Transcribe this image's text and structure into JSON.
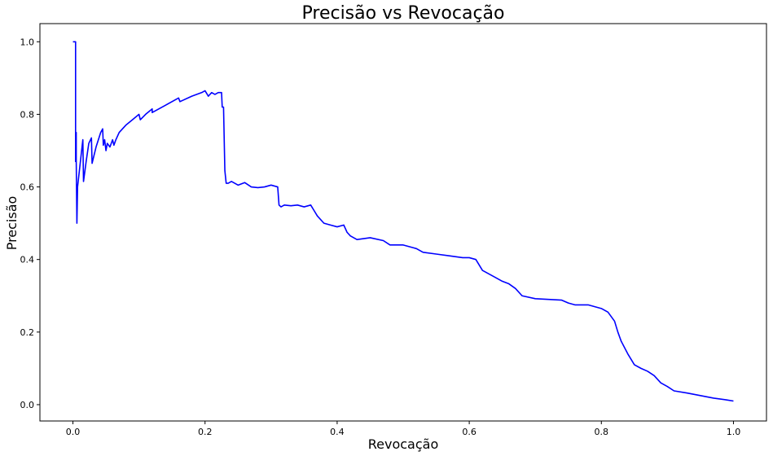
{
  "chart_data": {
    "type": "line",
    "title": "Precisão vs Revocação",
    "xlabel": "Revocação",
    "ylabel": "Precisão",
    "xlim": [
      -0.05,
      1.05
    ],
    "ylim": [
      -0.045,
      1.05
    ],
    "xticks": [
      0.0,
      0.2,
      0.4,
      0.6,
      0.8,
      1.0
    ],
    "xtick_labels": [
      "0.0",
      "0.2",
      "0.4",
      "0.6",
      "0.8",
      "1.0"
    ],
    "yticks": [
      0.0,
      0.2,
      0.4,
      0.6,
      0.8,
      1.0
    ],
    "ytick_labels": [
      "0.0",
      "0.2",
      "0.4",
      "0.6",
      "0.8",
      "1.0"
    ],
    "grid": false,
    "legend": "none",
    "series": [
      {
        "color": "#0000ff",
        "x": [
          0.0,
          0.004,
          0.004,
          0.005,
          0.005,
          0.006,
          0.006,
          0.007,
          0.015,
          0.016,
          0.02,
          0.024,
          0.028,
          0.029,
          0.035,
          0.042,
          0.045,
          0.046,
          0.048,
          0.05,
          0.052,
          0.056,
          0.06,
          0.062,
          0.065,
          0.07,
          0.08,
          0.09,
          0.1,
          0.102,
          0.11,
          0.12,
          0.12,
          0.14,
          0.16,
          0.162,
          0.18,
          0.195,
          0.2,
          0.205,
          0.21,
          0.215,
          0.22,
          0.225,
          0.226,
          0.228,
          0.23,
          0.232,
          0.235,
          0.24,
          0.25,
          0.26,
          0.27,
          0.28,
          0.29,
          0.3,
          0.31,
          0.312,
          0.315,
          0.32,
          0.33,
          0.34,
          0.35,
          0.36,
          0.365,
          0.37,
          0.38,
          0.39,
          0.4,
          0.41,
          0.415,
          0.42,
          0.43,
          0.45,
          0.47,
          0.48,
          0.5,
          0.52,
          0.53,
          0.55,
          0.57,
          0.59,
          0.6,
          0.61,
          0.62,
          0.64,
          0.65,
          0.66,
          0.67,
          0.68,
          0.7,
          0.72,
          0.74,
          0.75,
          0.76,
          0.78,
          0.79,
          0.8,
          0.81,
          0.82,
          0.825,
          0.83,
          0.84,
          0.85,
          0.86,
          0.87,
          0.88,
          0.89,
          0.9,
          0.91,
          0.93,
          0.95,
          0.97,
          0.99,
          1.0
        ],
        "y": [
          1.0,
          1.0,
          0.67,
          0.75,
          0.67,
          0.5,
          0.5,
          0.6,
          0.73,
          0.615,
          0.67,
          0.72,
          0.735,
          0.665,
          0.71,
          0.75,
          0.76,
          0.715,
          0.73,
          0.7,
          0.72,
          0.71,
          0.73,
          0.715,
          0.73,
          0.75,
          0.77,
          0.785,
          0.8,
          0.785,
          0.8,
          0.815,
          0.805,
          0.825,
          0.845,
          0.835,
          0.85,
          0.86,
          0.865,
          0.85,
          0.86,
          0.855,
          0.86,
          0.86,
          0.82,
          0.82,
          0.645,
          0.61,
          0.61,
          0.615,
          0.605,
          0.612,
          0.6,
          0.598,
          0.6,
          0.605,
          0.6,
          0.55,
          0.545,
          0.55,
          0.548,
          0.55,
          0.545,
          0.55,
          0.535,
          0.52,
          0.5,
          0.495,
          0.49,
          0.495,
          0.475,
          0.465,
          0.455,
          0.46,
          0.452,
          0.44,
          0.44,
          0.43,
          0.42,
          0.415,
          0.41,
          0.405,
          0.405,
          0.4,
          0.37,
          0.35,
          0.34,
          0.333,
          0.32,
          0.3,
          0.292,
          0.29,
          0.288,
          0.28,
          0.275,
          0.275,
          0.27,
          0.265,
          0.255,
          0.23,
          0.2,
          0.175,
          0.14,
          0.11,
          0.1,
          0.092,
          0.08,
          0.06,
          0.05,
          0.038,
          0.032,
          0.025,
          0.018,
          0.013,
          0.01
        ]
      }
    ]
  }
}
